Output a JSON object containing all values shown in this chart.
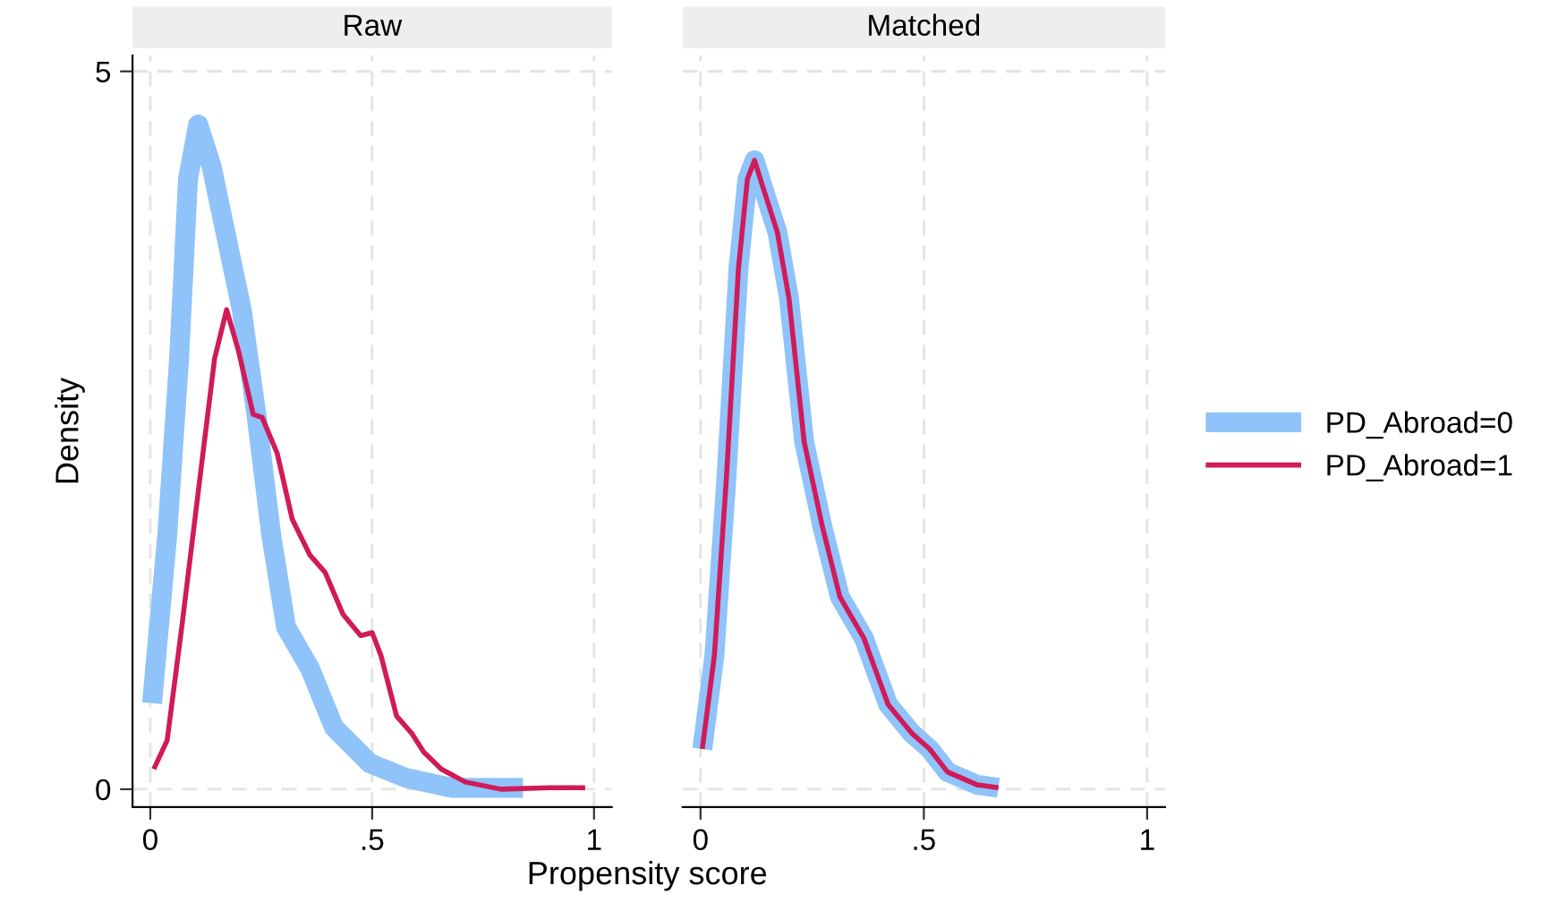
{
  "chart_data": [
    {
      "type": "line",
      "title": "Raw",
      "xlabel": "Propensity score",
      "ylabel": "Density",
      "xlim": [
        -0.04,
        1.04
      ],
      "ylim": [
        -0.125,
        5.11
      ],
      "xticks": [
        0,
        {
          "value": 0.5,
          "label": ".5"
        },
        1
      ],
      "yticks": [
        0,
        5
      ],
      "grid": true,
      "legend": "right",
      "series": [
        {
          "name": "PD_Abroad=0",
          "color": "#8fc3f9",
          "x": [
            0.004,
            0.038,
            0.065,
            0.085,
            0.108,
            0.138,
            0.172,
            0.206,
            0.24,
            0.273,
            0.306,
            0.36,
            0.414,
            0.495,
            0.575,
            0.68,
            0.84
          ],
          "values": [
            0.6,
            1.76,
            3.0,
            4.25,
            4.63,
            4.34,
            3.84,
            3.34,
            2.59,
            1.76,
            1.13,
            0.84,
            0.43,
            0.18,
            0.08,
            0.01,
            0.01
          ]
        },
        {
          "name": "PD_Abroad=1",
          "color": "#d11a5a",
          "x": [
            0.008,
            0.038,
            0.071,
            0.112,
            0.145,
            0.172,
            0.199,
            0.232,
            0.252,
            0.286,
            0.32,
            0.36,
            0.394,
            0.434,
            0.474,
            0.5,
            0.52,
            0.555,
            0.589,
            0.616,
            0.656,
            0.71,
            0.79,
            0.9,
            0.98
          ],
          "values": [
            0.14,
            0.34,
            1.13,
            2.17,
            3.0,
            3.34,
            3.05,
            2.61,
            2.59,
            2.34,
            1.88,
            1.63,
            1.51,
            1.22,
            1.07,
            1.09,
            0.93,
            0.51,
            0.39,
            0.26,
            0.14,
            0.05,
            0.0,
            0.01,
            0.01
          ]
        }
      ]
    },
    {
      "type": "line",
      "title": "Matched",
      "xlim": [
        -0.04,
        1.04
      ],
      "ylim": [
        -0.125,
        5.11
      ],
      "xticks": [
        0,
        {
          "value": 0.5,
          "label": ".5"
        },
        1
      ],
      "yticks": [
        0,
        5
      ],
      "tick_labels": "x",
      "grid": true,
      "series": [
        {
          "color": "#8fc3f9",
          "x": [
            0.004,
            0.031,
            0.058,
            0.085,
            0.105,
            0.121,
            0.138,
            0.172,
            0.198,
            0.232,
            0.272,
            0.312,
            0.366,
            0.42,
            0.473,
            0.513,
            0.553,
            0.62,
            0.667
          ],
          "values": [
            0.28,
            0.93,
            2.17,
            3.63,
            4.25,
            4.38,
            4.21,
            3.88,
            3.42,
            2.42,
            1.84,
            1.34,
            1.05,
            0.59,
            0.39,
            0.28,
            0.12,
            0.03,
            0.01
          ]
        },
        {
          "color": "#d11a5a",
          "x": [
            0.004,
            0.031,
            0.058,
            0.085,
            0.105,
            0.121,
            0.138,
            0.172,
            0.198,
            0.232,
            0.272,
            0.312,
            0.366,
            0.42,
            0.473,
            0.513,
            0.553,
            0.62,
            0.667
          ],
          "values": [
            0.28,
            0.93,
            2.17,
            3.63,
            4.25,
            4.38,
            4.21,
            3.88,
            3.42,
            2.42,
            1.84,
            1.34,
            1.05,
            0.59,
            0.39,
            0.28,
            0.12,
            0.03,
            0.01
          ]
        }
      ]
    }
  ]
}
